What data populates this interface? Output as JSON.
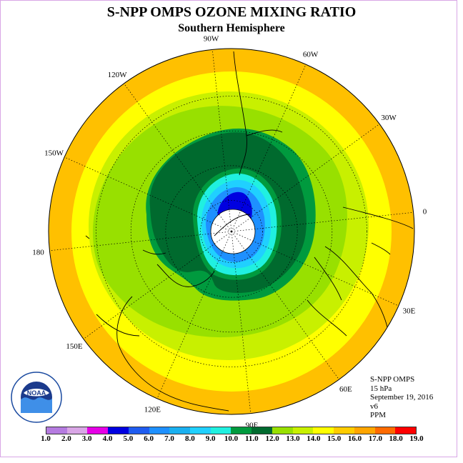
{
  "title": "S-NPP OMPS OZONE MIXING RATIO",
  "subtitle": "Southern Hemisphere",
  "longitude_labels": [
    {
      "name": "lon-90w",
      "text": "90W",
      "deg": -90
    },
    {
      "name": "lon-60w",
      "text": "60W",
      "deg": -60
    },
    {
      "name": "lon-30w",
      "text": "30W",
      "deg": -30
    },
    {
      "name": "lon-0",
      "text": "0",
      "deg": 0
    },
    {
      "name": "lon-30e",
      "text": "30E",
      "deg": 30
    },
    {
      "name": "lon-60e",
      "text": "60E",
      "deg": 60
    },
    {
      "name": "lon-90e",
      "text": "90E",
      "deg": 90
    },
    {
      "name": "lon-120e",
      "text": "120E",
      "deg": 120
    },
    {
      "name": "lon-150e",
      "text": "150E",
      "deg": 150
    },
    {
      "name": "lon-180",
      "text": "180",
      "deg": 180
    },
    {
      "name": "lon-150w",
      "text": "150W",
      "deg": -150
    },
    {
      "name": "lon-120w",
      "text": "120W",
      "deg": -120
    }
  ],
  "info": {
    "instrument": "S-NPP OMPS",
    "level": "15 hPa",
    "date": "September 19, 2016",
    "version": "v6",
    "units": "PPM"
  },
  "logo_text": "NOAA",
  "colorbar": {
    "ticks": [
      "1.0",
      "2.0",
      "3.0",
      "4.0",
      "5.0",
      "6.0",
      "7.0",
      "8.0",
      "9.0",
      "10.0",
      "11.0",
      "12.0",
      "13.0",
      "14.0",
      "15.0",
      "16.0",
      "17.0",
      "18.0",
      "19.0"
    ],
    "colors": [
      "#b57be0",
      "#d9a6e6",
      "#e600e6",
      "#0000e0",
      "#1f5cf0",
      "#1e90ff",
      "#1ab0f0",
      "#20d0ff",
      "#20f0e0",
      "#009a3e",
      "#006a2e",
      "#98e000",
      "#c8f000",
      "#ffff00",
      "#ffcc00",
      "#ffa500",
      "#ff6a00",
      "#ff0000",
      "#8b5a2b"
    ]
  },
  "map_fields": {
    "outer_band": "#ffc000",
    "yellow_band": "#ffff00",
    "yellowgreen_band": "#c8f000",
    "lightgreen_band": "#98e000",
    "darkgreen_core": "#006a2e",
    "green_ring": "#009a3e",
    "polar_night": "#ffffff"
  }
}
